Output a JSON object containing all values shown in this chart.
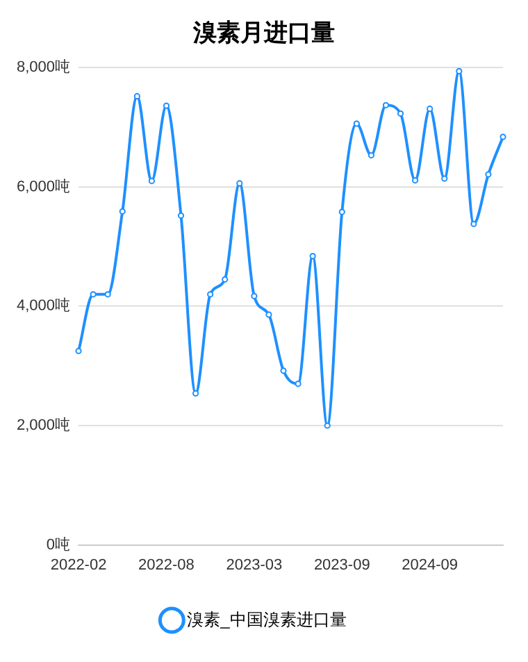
{
  "chart_data": {
    "type": "line",
    "title": "溴素月进口量",
    "categories": [
      "2022-02",
      null,
      null,
      null,
      null,
      null,
      "2022-08",
      null,
      null,
      null,
      null,
      null,
      "2023-03",
      null,
      null,
      null,
      null,
      null,
      "2023-09",
      null,
      null,
      null,
      null,
      null,
      "2024-09",
      null,
      null,
      null,
      null,
      null
    ],
    "series": [
      {
        "name": "溴素_中国溴素进口量",
        "color": "#1e90ff",
        "values": [
          3250,
          4200,
          4200,
          5590,
          7520,
          6100,
          7360,
          5520,
          2540,
          4200,
          4450,
          6060,
          4170,
          3860,
          2920,
          2700,
          4840,
          2000,
          5580,
          7060,
          6530,
          7370,
          7230,
          6110,
          7310,
          6140,
          7940,
          5380,
          6210,
          6840
        ]
      }
    ],
    "ylim": [
      0,
      8000
    ],
    "yticks": [
      {
        "value": 0,
        "label": "0吨"
      },
      {
        "value": 2000,
        "label": "2,000吨"
      },
      {
        "value": 4000,
        "label": "4,000吨"
      },
      {
        "value": 6000,
        "label": "6,000吨"
      },
      {
        "value": 8000,
        "label": "8,000吨"
      }
    ],
    "grid": "y",
    "legend": "bottom",
    "marker": "circle",
    "line_style": "solid"
  }
}
